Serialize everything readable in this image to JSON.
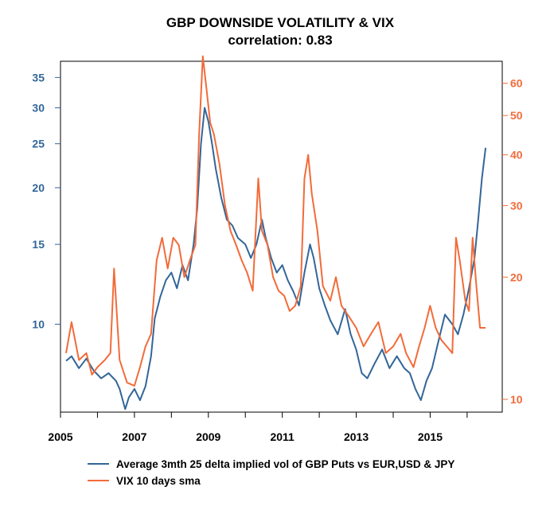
{
  "chart_data": {
    "type": "line",
    "title": "GBP DOWNSIDE VOLATILITY & VIX",
    "subtitle": "correlation:  0.83",
    "x_ticks": [
      "2005",
      "2007",
      "2009",
      "2011",
      "2013",
      "2015"
    ],
    "xlim": [
      2005,
      2016.95
    ],
    "y_left": {
      "scale": "log",
      "range": [
        6.4,
        38
      ],
      "ticks": [
        "10",
        "15",
        "20",
        "25",
        "30",
        "35"
      ],
      "color": "#336699"
    },
    "y_right": {
      "scale": "log",
      "range": [
        9.3,
        68
      ],
      "ticks": [
        "10",
        "20",
        "30",
        "40",
        "50",
        "60"
      ],
      "color": "#F26B3A"
    },
    "legend_position": "bottom",
    "grid": false,
    "series": [
      {
        "name": "Average 3mth 25 delta implied vol of GBP Puts  vs EUR,USD & JPY",
        "axis": "left",
        "color": "#336699",
        "x": [
          2005.15,
          2005.3,
          2005.5,
          2005.7,
          2005.9,
          2006.1,
          2006.3,
          2006.5,
          2006.6,
          2006.75,
          2006.85,
          2007.0,
          2007.15,
          2007.3,
          2007.45,
          2007.55,
          2007.7,
          2007.85,
          2008.0,
          2008.15,
          2008.3,
          2008.45,
          2008.6,
          2008.7,
          2008.8,
          2008.9,
          2009.0,
          2009.1,
          2009.2,
          2009.35,
          2009.5,
          2009.65,
          2009.8,
          2010.0,
          2010.15,
          2010.3,
          2010.45,
          2010.55,
          2010.7,
          2010.85,
          2011.0,
          2011.15,
          2011.3,
          2011.45,
          2011.6,
          2011.75,
          2011.85,
          2012.0,
          2012.15,
          2012.3,
          2012.5,
          2012.7,
          2012.85,
          2013.0,
          2013.15,
          2013.3,
          2013.5,
          2013.7,
          2013.9,
          2014.1,
          2014.3,
          2014.45,
          2014.6,
          2014.75,
          2014.9,
          2015.05,
          2015.2,
          2015.4,
          2015.6,
          2015.75,
          2015.9,
          2016.05,
          2016.2,
          2016.3,
          2016.4,
          2016.5
        ],
        "values": [
          8.3,
          8.5,
          8.0,
          8.4,
          7.9,
          7.6,
          7.8,
          7.5,
          7.2,
          6.5,
          6.9,
          7.2,
          6.8,
          7.3,
          8.5,
          10.3,
          11.5,
          12.5,
          13.0,
          12.0,
          13.5,
          12.5,
          15.0,
          18.0,
          25.0,
          30.0,
          28.0,
          25.0,
          22.0,
          19.0,
          17.0,
          16.5,
          15.5,
          15.0,
          14.0,
          15.0,
          17.0,
          15.5,
          14.0,
          13.0,
          13.5,
          12.5,
          11.8,
          11.0,
          13.0,
          15.0,
          14.0,
          12.0,
          11.0,
          10.2,
          9.5,
          10.8,
          9.5,
          8.8,
          7.8,
          7.6,
          8.2,
          8.8,
          8.0,
          8.5,
          8.0,
          7.8,
          7.2,
          6.8,
          7.5,
          8.0,
          9.0,
          10.5,
          10.0,
          9.5,
          10.5,
          12.0,
          14.0,
          17.0,
          21.0,
          24.5
        ]
      },
      {
        "name": "VIX 10 days sma",
        "axis": "right",
        "color": "#F26B3A",
        "x": [
          2005.15,
          2005.3,
          2005.5,
          2005.7,
          2005.85,
          2006.0,
          2006.2,
          2006.35,
          2006.45,
          2006.6,
          2006.8,
          2007.0,
          2007.15,
          2007.3,
          2007.45,
          2007.6,
          2007.75,
          2007.9,
          2008.05,
          2008.2,
          2008.35,
          2008.5,
          2008.65,
          2008.75,
          2008.85,
          2008.95,
          2009.05,
          2009.15,
          2009.3,
          2009.45,
          2009.6,
          2009.75,
          2009.9,
          2010.05,
          2010.2,
          2010.35,
          2010.45,
          2010.6,
          2010.75,
          2010.9,
          2011.05,
          2011.2,
          2011.35,
          2011.5,
          2011.6,
          2011.7,
          2011.8,
          2011.95,
          2012.1,
          2012.3,
          2012.45,
          2012.6,
          2012.8,
          2013.0,
          2013.2,
          2013.4,
          2013.6,
          2013.8,
          2014.0,
          2014.2,
          2014.35,
          2014.55,
          2014.7,
          2014.85,
          2015.0,
          2015.15,
          2015.3,
          2015.45,
          2015.6,
          2015.7,
          2015.8,
          2015.95,
          2016.05,
          2016.15,
          2016.25,
          2016.35,
          2016.5
        ],
        "values": [
          13.0,
          15.5,
          12.5,
          13.0,
          11.5,
          12.0,
          12.5,
          13.0,
          21.0,
          12.5,
          11.0,
          10.8,
          12.0,
          13.5,
          14.5,
          22.0,
          25.0,
          21.0,
          25.0,
          24.0,
          20.0,
          22.0,
          24.0,
          45.0,
          70.0,
          58.0,
          48.0,
          45.0,
          38.0,
          30.0,
          26.0,
          24.0,
          22.0,
          20.5,
          18.5,
          35.0,
          26.0,
          24.0,
          20.0,
          18.5,
          18.0,
          16.5,
          17.0,
          19.0,
          35.0,
          40.0,
          32.0,
          26.0,
          19.0,
          17.5,
          20.0,
          17.0,
          16.0,
          15.0,
          13.5,
          14.5,
          15.5,
          13.0,
          13.5,
          14.5,
          13.0,
          12.0,
          13.5,
          15.0,
          17.0,
          15.0,
          14.0,
          13.5,
          13.0,
          25.0,
          22.0,
          17.5,
          16.5,
          25.0,
          19.0,
          15.0,
          15.0
        ]
      }
    ]
  }
}
